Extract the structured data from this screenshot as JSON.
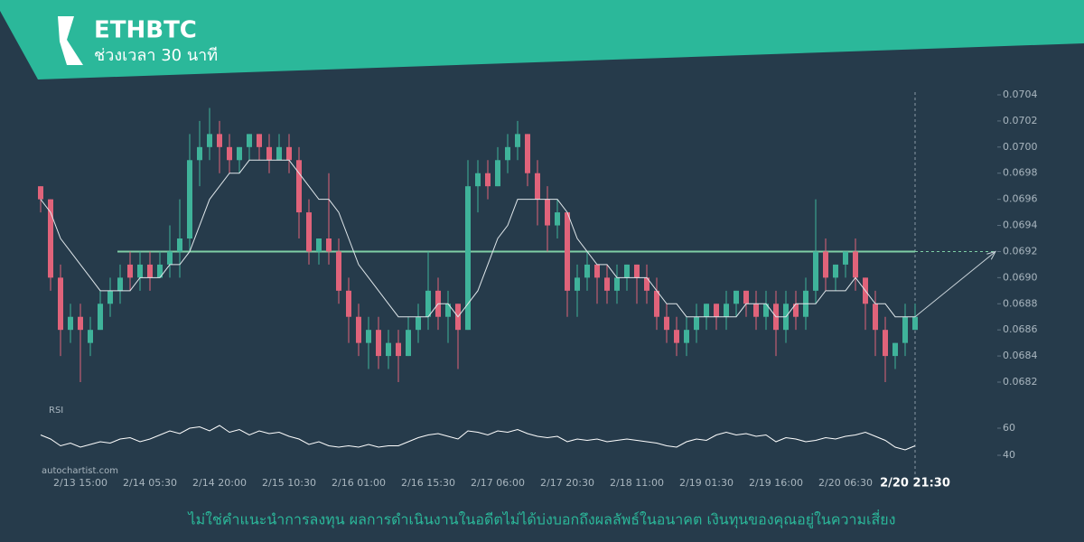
{
  "header": {
    "symbol": "ETHBTC",
    "timeframe": "ช่วงเวลา 30 นาที"
  },
  "chart_data": {
    "type": "candlestick",
    "up_color": "#3fb39a",
    "down_color": "#e0637a",
    "categories": [
      null,
      null,
      null,
      null,
      "2/13 15:00",
      null,
      null,
      null,
      null,
      null,
      null,
      "2/14 05:30",
      null,
      null,
      null,
      null,
      null,
      null,
      "2/14 20:00",
      null,
      null,
      null,
      null,
      null,
      null,
      "2/15 10:30",
      null,
      null,
      null,
      null,
      null,
      null,
      "2/16 01:00",
      null,
      null,
      null,
      null,
      null,
      null,
      "2/16 15:30",
      null,
      null,
      null,
      null,
      null,
      null,
      "2/17 06:00",
      null,
      null,
      null,
      null,
      null,
      null,
      "2/17 20:30",
      null,
      null,
      null,
      null,
      null,
      null,
      "2/18 11:00",
      null,
      null,
      null,
      null,
      null,
      null,
      "2/19 01:30",
      null,
      null,
      null,
      null,
      null,
      null,
      "2/19 16:00",
      null,
      null,
      null,
      null,
      null,
      null,
      "2/20 06:30",
      null,
      null,
      null,
      null,
      null,
      null,
      "2/20 21:30"
    ],
    "ohlc": [
      [
        0.0697,
        0.0697,
        0.0695,
        0.0696
      ],
      [
        0.0696,
        0.0696,
        0.0689,
        0.069
      ],
      [
        0.069,
        0.0691,
        0.0684,
        0.0686
      ],
      [
        0.0686,
        0.0688,
        0.0685,
        0.0687
      ],
      [
        0.0687,
        0.0688,
        0.0682,
        0.0686
      ],
      [
        0.0685,
        0.0687,
        0.0684,
        0.0686
      ],
      [
        0.0686,
        0.0689,
        0.0686,
        0.0688
      ],
      [
        0.0688,
        0.069,
        0.0687,
        0.0689
      ],
      [
        0.0689,
        0.0691,
        0.0688,
        0.069
      ],
      [
        0.0691,
        0.0692,
        0.0689,
        0.069
      ],
      [
        0.069,
        0.0692,
        0.0689,
        0.0691
      ],
      [
        0.0691,
        0.0692,
        0.0689,
        0.069
      ],
      [
        0.069,
        0.0692,
        0.069,
        0.0691
      ],
      [
        0.0691,
        0.0694,
        0.069,
        0.0692
      ],
      [
        0.0692,
        0.0696,
        0.069,
        0.0693
      ],
      [
        0.0693,
        0.0701,
        0.0692,
        0.0699
      ],
      [
        0.0699,
        0.0702,
        0.0697,
        0.07
      ],
      [
        0.07,
        0.0703,
        0.0699,
        0.0701
      ],
      [
        0.0701,
        0.0702,
        0.0698,
        0.07
      ],
      [
        0.07,
        0.0701,
        0.0698,
        0.0699
      ],
      [
        0.0699,
        0.07,
        0.0698,
        0.07
      ],
      [
        0.07,
        0.0701,
        0.0699,
        0.0701
      ],
      [
        0.0701,
        0.0701,
        0.0699,
        0.07
      ],
      [
        0.07,
        0.0701,
        0.0698,
        0.0699
      ],
      [
        0.0699,
        0.0701,
        0.0699,
        0.07
      ],
      [
        0.07,
        0.0701,
        0.0698,
        0.0699
      ],
      [
        0.0699,
        0.07,
        0.0693,
        0.0695
      ],
      [
        0.0695,
        0.0696,
        0.0691,
        0.0692
      ],
      [
        0.0692,
        0.0693,
        0.0691,
        0.0693
      ],
      [
        0.0693,
        0.0698,
        0.0691,
        0.0692
      ],
      [
        0.0692,
        0.0693,
        0.0688,
        0.0689
      ],
      [
        0.0689,
        0.069,
        0.0685,
        0.0687
      ],
      [
        0.0687,
        0.0688,
        0.0684,
        0.0685
      ],
      [
        0.0685,
        0.0687,
        0.0683,
        0.0686
      ],
      [
        0.0686,
        0.0687,
        0.0683,
        0.0684
      ],
      [
        0.0684,
        0.0686,
        0.0683,
        0.0685
      ],
      [
        0.0685,
        0.0686,
        0.0682,
        0.0684
      ],
      [
        0.0684,
        0.0687,
        0.0684,
        0.0686
      ],
      [
        0.0686,
        0.0688,
        0.0685,
        0.0687
      ],
      [
        0.0687,
        0.0692,
        0.0686,
        0.0689
      ],
      [
        0.0689,
        0.069,
        0.0686,
        0.0687
      ],
      [
        0.0687,
        0.0689,
        0.0685,
        0.0688
      ],
      [
        0.0688,
        0.0688,
        0.0683,
        0.0686
      ],
      [
        0.0686,
        0.0699,
        0.0686,
        0.0697
      ],
      [
        0.0697,
        0.0699,
        0.0695,
        0.0698
      ],
      [
        0.0698,
        0.0699,
        0.0696,
        0.0697
      ],
      [
        0.0697,
        0.07,
        0.0697,
        0.0699
      ],
      [
        0.0699,
        0.0701,
        0.0698,
        0.07
      ],
      [
        0.07,
        0.0702,
        0.0699,
        0.0701
      ],
      [
        0.0701,
        0.0701,
        0.0697,
        0.0698
      ],
      [
        0.0698,
        0.0699,
        0.0694,
        0.0696
      ],
      [
        0.0696,
        0.0697,
        0.0692,
        0.0694
      ],
      [
        0.0694,
        0.0696,
        0.0693,
        0.0695
      ],
      [
        0.0695,
        0.0695,
        0.0687,
        0.0689
      ],
      [
        0.0689,
        0.0691,
        0.0687,
        0.069
      ],
      [
        0.069,
        0.0692,
        0.0689,
        0.0691
      ],
      [
        0.0691,
        0.0691,
        0.0688,
        0.069
      ],
      [
        0.069,
        0.0691,
        0.0688,
        0.0689
      ],
      [
        0.0689,
        0.0691,
        0.0688,
        0.069
      ],
      [
        0.069,
        0.0691,
        0.0689,
        0.0691
      ],
      [
        0.0691,
        0.0691,
        0.0688,
        0.069
      ],
      [
        0.069,
        0.0691,
        0.0688,
        0.0689
      ],
      [
        0.0689,
        0.069,
        0.0686,
        0.0687
      ],
      [
        0.0687,
        0.0688,
        0.0685,
        0.0686
      ],
      [
        0.0686,
        0.0687,
        0.0684,
        0.0685
      ],
      [
        0.0685,
        0.0687,
        0.0684,
        0.0686
      ],
      [
        0.0686,
        0.0688,
        0.0685,
        0.0687
      ],
      [
        0.0687,
        0.0688,
        0.0686,
        0.0688
      ],
      [
        0.0688,
        0.0688,
        0.0686,
        0.0687
      ],
      [
        0.0687,
        0.0689,
        0.0686,
        0.0688
      ],
      [
        0.0688,
        0.0689,
        0.0687,
        0.0689
      ],
      [
        0.0689,
        0.0689,
        0.0687,
        0.0688
      ],
      [
        0.0688,
        0.0689,
        0.0686,
        0.0687
      ],
      [
        0.0687,
        0.0689,
        0.0686,
        0.0688
      ],
      [
        0.0688,
        0.0689,
        0.0684,
        0.0686
      ],
      [
        0.0686,
        0.0689,
        0.0685,
        0.0688
      ],
      [
        0.0688,
        0.0689,
        0.0686,
        0.0687
      ],
      [
        0.0687,
        0.069,
        0.0686,
        0.0689
      ],
      [
        0.0689,
        0.0696,
        0.0688,
        0.0692
      ],
      [
        0.0692,
        0.0693,
        0.0689,
        0.069
      ],
      [
        0.069,
        0.0691,
        0.0689,
        0.0691
      ],
      [
        0.0691,
        0.0692,
        0.069,
        0.0692
      ],
      [
        0.0692,
        0.0693,
        0.0689,
        0.069
      ],
      [
        0.069,
        0.069,
        0.0686,
        0.0688
      ],
      [
        0.0688,
        0.0689,
        0.0684,
        0.0686
      ],
      [
        0.0686,
        0.0687,
        0.0682,
        0.0684
      ],
      [
        0.0684,
        0.0685,
        0.0683,
        0.0685
      ],
      [
        0.0685,
        0.0688,
        0.0684,
        0.0687
      ],
      [
        0.0686,
        0.0688,
        0.0686,
        0.0687
      ]
    ],
    "ma": {
      "color": "#dfe6ea",
      "values": [
        0.0696,
        0.0695,
        0.0693,
        0.0692,
        0.0691,
        0.069,
        0.0689,
        0.0689,
        0.0689,
        0.0689,
        0.069,
        0.069,
        0.069,
        0.0691,
        0.0691,
        0.0692,
        0.0694,
        0.0696,
        0.0697,
        0.0698,
        0.0698,
        0.0699,
        0.0699,
        0.0699,
        0.0699,
        0.0699,
        0.0698,
        0.0697,
        0.0696,
        0.0696,
        0.0695,
        0.0693,
        0.0691,
        0.069,
        0.0689,
        0.0688,
        0.0687,
        0.0687,
        0.0687,
        0.0687,
        0.0688,
        0.0688,
        0.0687,
        0.0688,
        0.0689,
        0.0691,
        0.0693,
        0.0694,
        0.0696,
        0.0696,
        0.0696,
        0.0696,
        0.0696,
        0.0695,
        0.0693,
        0.0692,
        0.0691,
        0.0691,
        0.069,
        0.069,
        0.069,
        0.069,
        0.0689,
        0.0688,
        0.0688,
        0.0687,
        0.0687,
        0.0687,
        0.0687,
        0.0687,
        0.0687,
        0.0688,
        0.0688,
        0.0688,
        0.0687,
        0.0687,
        0.0688,
        0.0688,
        0.0688,
        0.0689,
        0.0689,
        0.0689,
        0.069,
        0.0689,
        0.0688,
        0.0688,
        0.0687,
        0.0687,
        0.0687
      ]
    },
    "level": {
      "value": 0.0692,
      "color": "#7fcfa6"
    },
    "ylim": [
      0.0682,
      0.0704
    ],
    "yticks": [
      0.0682,
      0.0684,
      0.0686,
      0.0688,
      {
        "value": 0.069,
        "label": "0.0690"
      },
      0.0692,
      0.0694,
      0.0696,
      0.0698,
      {
        "value": 0.07,
        "label": "0.0700"
      },
      0.0702,
      0.0704
    ],
    "rsi": {
      "label": "RSI",
      "color": "#ffffff",
      "ylim": [
        40,
        60
      ],
      "yticks": [
        60,
        40
      ],
      "values": [
        55,
        52,
        47,
        49,
        46,
        48,
        50,
        49,
        52,
        53,
        50,
        52,
        55,
        58,
        56,
        60,
        61,
        58,
        62,
        57,
        59,
        55,
        58,
        56,
        57,
        54,
        52,
        48,
        50,
        47,
        46,
        47,
        46,
        48,
        46,
        47,
        47,
        50,
        53,
        55,
        56,
        54,
        52,
        58,
        57,
        55,
        58,
        57,
        59,
        56,
        54,
        53,
        54,
        50,
        52,
        51,
        52,
        50,
        51,
        52,
        51,
        50,
        49,
        47,
        46,
        50,
        52,
        51,
        55,
        57,
        55,
        56,
        54,
        55,
        50,
        53,
        52,
        50,
        51,
        53,
        52,
        54,
        55,
        57,
        54,
        51,
        46,
        44,
        47
      ]
    }
  },
  "watermark": "autochartist.com",
  "disclaimer": "ไม่ใช่คำแนะนำการลงทุน ผลการดำเนินงานในอดีตไม่ได้บ่งบอกถึงผลลัพธ์ในอนาคต เงินทุนของคุณอยู่ในความเสี่ยง"
}
